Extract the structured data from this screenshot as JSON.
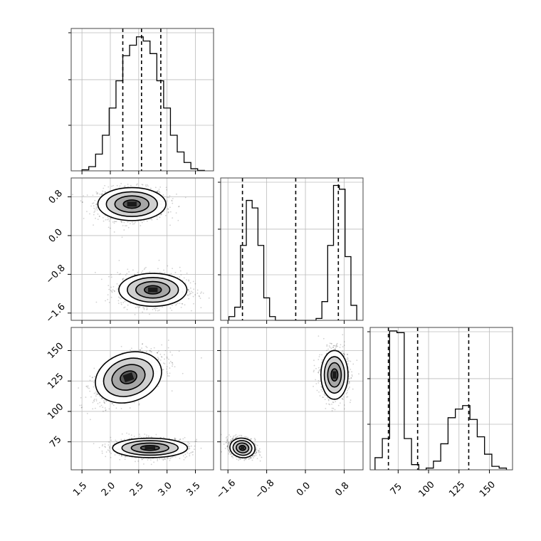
{
  "chart_data": {
    "type": "corner",
    "grid": true,
    "parameters": [
      {
        "ticks": [
          "1.5",
          "2.0",
          "2.5",
          "3.0",
          "3.5"
        ],
        "tick_values": [
          1.5,
          2.0,
          2.5,
          3.0,
          3.5
        ],
        "range": [
          1.31,
          3.82
        ]
      },
      {
        "ticks": [
          "−1.6",
          "−0.8",
          "0.0",
          "0.8"
        ],
        "tick_values": [
          -1.6,
          -0.8,
          0.0,
          0.8
        ],
        "range": [
          -1.75,
          1.19
        ]
      },
      {
        "ticks": [
          "75",
          "100",
          "125",
          "150"
        ],
        "tick_values": [
          75,
          100,
          125,
          150
        ],
        "range": [
          52,
          169
        ]
      }
    ],
    "marginals": [
      {
        "param": 0,
        "bin_edges": [
          1.5,
          1.62,
          1.74,
          1.86,
          1.98,
          2.1,
          2.22,
          2.34,
          2.46,
          2.58,
          2.7,
          2.82,
          2.94,
          3.06,
          3.18,
          3.3,
          3.42,
          3.54,
          3.66
        ],
        "counts": [
          0.5,
          2,
          8,
          17,
          30,
          43,
          55,
          60,
          64,
          62,
          56,
          43,
          30,
          17,
          9,
          4,
          1,
          0.2
        ],
        "ymax": 68,
        "quantiles": [
          2.22,
          2.55,
          2.89
        ]
      },
      {
        "param": 1,
        "bin_edges": [
          -1.58,
          -1.46,
          -1.34,
          -1.22,
          -1.1,
          -0.98,
          -0.86,
          -0.74,
          -0.62,
          -0.5,
          -0.38,
          -0.26,
          -0.14,
          -0.02,
          0.1,
          0.22,
          0.34,
          0.46,
          0.58,
          0.7,
          0.82,
          0.94,
          1.06
        ],
        "counts": [
          2,
          7,
          40,
          64,
          60,
          40,
          12,
          2,
          0,
          0,
          0,
          0,
          0,
          0,
          0,
          1,
          10,
          40,
          72,
          70,
          34,
          8
        ],
        "ymax": 76,
        "quantiles": [
          -1.3,
          -0.2,
          0.68
        ]
      },
      {
        "param": 2,
        "bin_edges": [
          56,
          62,
          68,
          74,
          80,
          86,
          92,
          98,
          104,
          110,
          116,
          122,
          128,
          134,
          140,
          146,
          152,
          158,
          164
        ],
        "counts": [
          7,
          18,
          80,
          79,
          18,
          3,
          0,
          1,
          5,
          15,
          30,
          35,
          37,
          29,
          19,
          9,
          2,
          1
        ],
        "ymax": 82,
        "quantiles": [
          67,
          91,
          133
        ]
      }
    ],
    "joint": [
      {
        "x_param": 0,
        "y_param": 1,
        "clusters": [
          {
            "cx": 2.38,
            "cy": 0.65,
            "sx": 0.3,
            "sy": 0.17,
            "rho": 0,
            "n": 1200
          },
          {
            "cx": 2.75,
            "cy": -1.12,
            "sx": 0.3,
            "sy": 0.17,
            "rho": 0,
            "n": 1200
          }
        ]
      },
      {
        "x_param": 0,
        "y_param": 2,
        "clusters": [
          {
            "cx": 2.32,
            "cy": 128,
            "sx": 0.3,
            "sy": 10,
            "rho": 0.55,
            "n": 1200
          },
          {
            "cx": 2.7,
            "cy": 70,
            "sx": 0.33,
            "sy": 4,
            "rho": 0,
            "n": 1200
          }
        ]
      },
      {
        "x_param": 1,
        "y_param": 2,
        "clusters": [
          {
            "cx": 0.6,
            "cy": 130,
            "sx": 0.14,
            "sy": 10,
            "rho": 0,
            "n": 1200
          },
          {
            "cx": -1.3,
            "cy": 70,
            "sx": 0.13,
            "sy": 4,
            "rho": -0.2,
            "n": 1200
          }
        ]
      }
    ]
  }
}
